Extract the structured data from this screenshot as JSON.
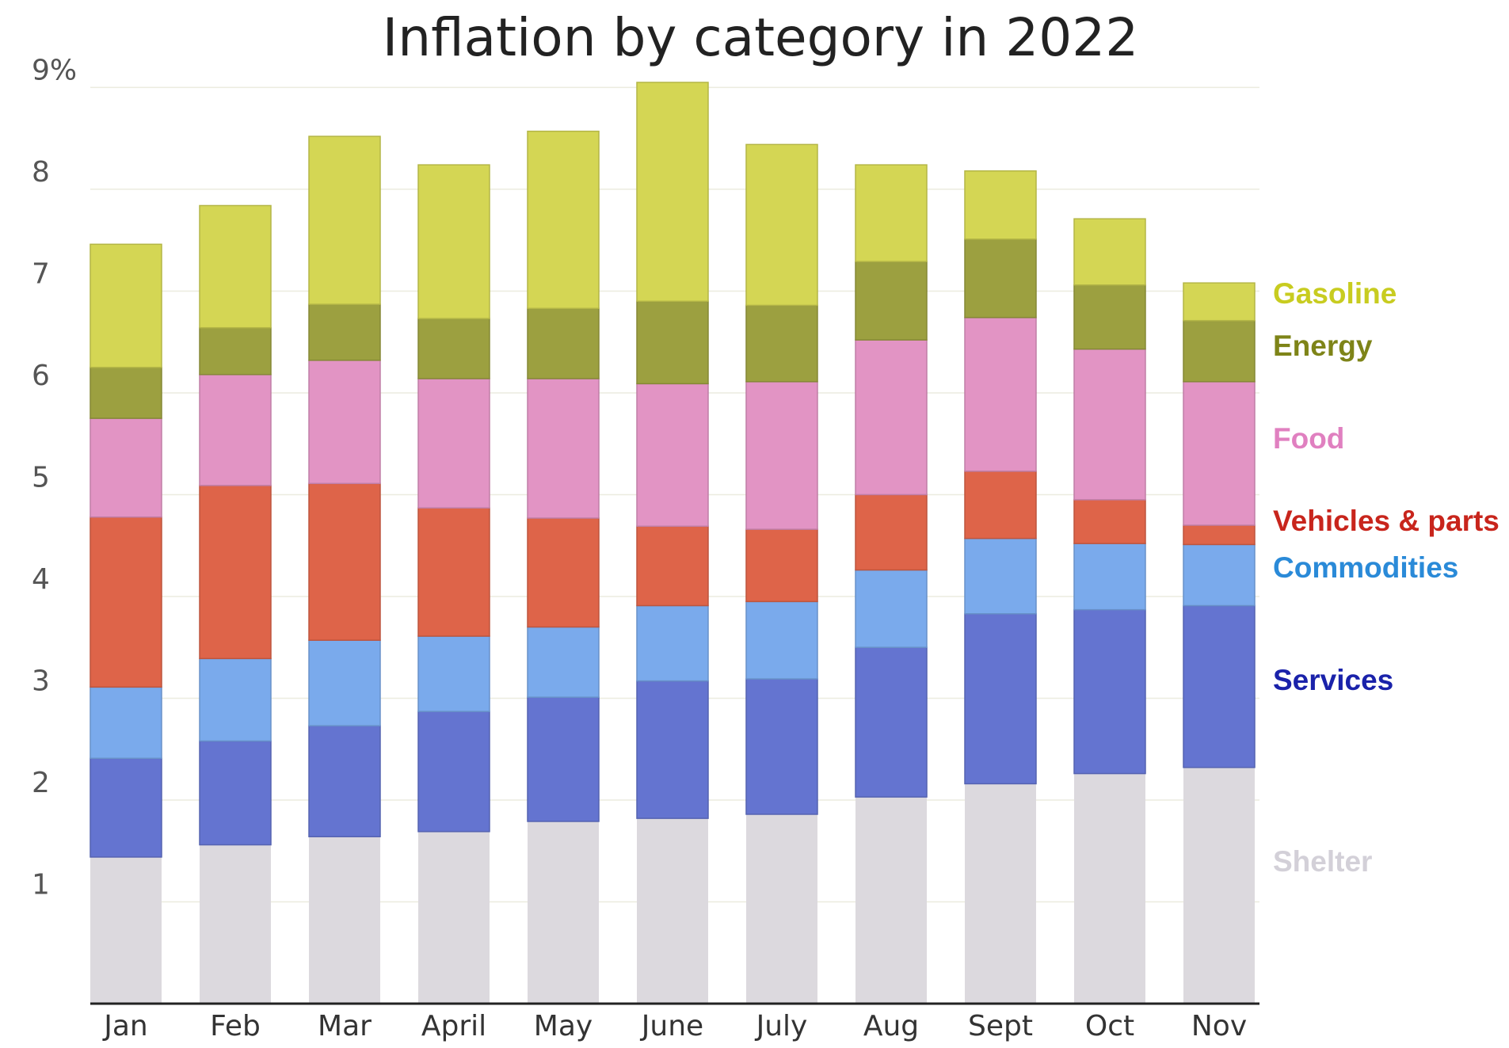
{
  "chart_data": {
    "type": "bar",
    "stacked": true,
    "title": "Inflation by category in 2022",
    "xlabel": "",
    "ylabel": "",
    "ylim": [
      0,
      9.05
    ],
    "y_ticks": [
      {
        "value": 1,
        "label": "1"
      },
      {
        "value": 2,
        "label": "2"
      },
      {
        "value": 3,
        "label": "3"
      },
      {
        "value": 4,
        "label": "4"
      },
      {
        "value": 5,
        "label": "5"
      },
      {
        "value": 6,
        "label": "6"
      },
      {
        "value": 7,
        "label": "7"
      },
      {
        "value": 8,
        "label": "8"
      },
      {
        "value": 9,
        "label": "9%"
      }
    ],
    "grid": true,
    "legend_position": "right, beside the last bar",
    "categories": [
      "Jan",
      "Feb",
      "Mar",
      "April",
      "May",
      "June",
      "July",
      "Aug",
      "Sept",
      "Oct",
      "Nov"
    ],
    "series": [
      {
        "name": "Shelter",
        "color": "#dcd9de",
        "label_color": "#d3d0d8",
        "values": [
          1.44,
          1.56,
          1.64,
          1.69,
          1.79,
          1.82,
          1.86,
          2.03,
          2.16,
          2.26,
          2.32
        ]
      },
      {
        "name": "Services",
        "color": "#6474d0",
        "label_color": "#1a22aa",
        "values": [
          0.97,
          1.02,
          1.09,
          1.18,
          1.22,
          1.35,
          1.33,
          1.47,
          1.67,
          1.61,
          1.59
        ]
      },
      {
        "name": "Commodities",
        "color": "#7aaaec",
        "label_color": "#2a8ad8",
        "values": [
          0.7,
          0.81,
          0.84,
          0.74,
          0.69,
          0.74,
          0.76,
          0.76,
          0.74,
          0.65,
          0.6
        ]
      },
      {
        "name": "Vehicles & parts",
        "color": "#de6449",
        "label_color": "#c8251c",
        "values": [
          1.67,
          1.7,
          1.54,
          1.26,
          1.07,
          0.78,
          0.71,
          0.74,
          0.66,
          0.43,
          0.19
        ]
      },
      {
        "name": "Food",
        "color": "#e294c4",
        "label_color": "#e080c0",
        "values": [
          0.97,
          1.09,
          1.21,
          1.27,
          1.37,
          1.4,
          1.45,
          1.52,
          1.51,
          1.48,
          1.41
        ]
      },
      {
        "name": "Energy",
        "color": "#9ca040",
        "label_color": "#7e8418",
        "values": [
          0.5,
          0.46,
          0.55,
          0.59,
          0.69,
          0.81,
          0.75,
          0.77,
          0.77,
          0.63,
          0.6
        ]
      },
      {
        "name": "Gasoline",
        "color": "#d4d654",
        "label_color": "#c8cc20",
        "values": [
          1.21,
          1.2,
          1.65,
          1.51,
          1.74,
          2.15,
          1.58,
          0.95,
          0.67,
          0.65,
          0.37
        ]
      }
    ]
  }
}
